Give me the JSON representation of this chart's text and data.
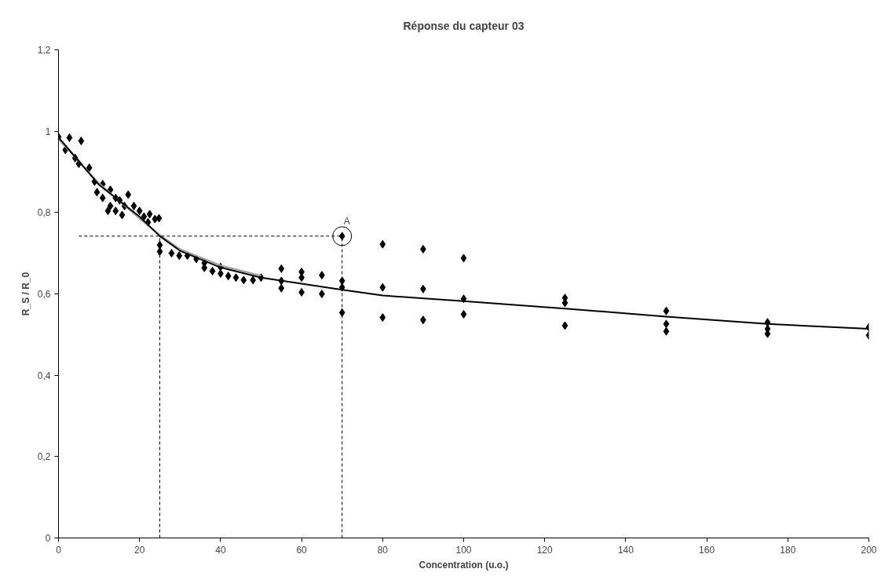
{
  "chart_data": {
    "type": "scatter",
    "title": "Réponse du capteur 03",
    "xlabel": "Concentration (u.o.)",
    "ylabel": "R_S / R_0",
    "xlim": [
      0,
      200
    ],
    "ylim": [
      0,
      1.2
    ],
    "xticks": [
      0,
      20,
      40,
      60,
      80,
      100,
      120,
      140,
      160,
      180,
      200
    ],
    "yticks": [
      0,
      {
        "value": 0.2,
        "label": "0,2"
      },
      {
        "value": 0.4,
        "label": "0,4"
      },
      {
        "value": 0.6,
        "label": "0,6"
      },
      {
        "value": 0.8,
        "label": "0,8"
      },
      1,
      {
        "value": 1.2,
        "label": "1,2"
      }
    ],
    "grid": false,
    "annotations": [
      {
        "text": "A",
        "x": 70,
        "y": 0.742
      }
    ],
    "series": [
      {
        "color": "#000000",
        "marker": "diamond",
        "x": [
          0,
          2.7,
          5.6,
          1.7,
          4.1,
          5,
          7.6,
          8.9,
          10.9,
          9.5,
          10.9,
          12.8,
          14.1,
          15.7,
          17.2,
          15.1,
          18.6,
          20,
          21.1,
          22.5,
          23.8,
          24.8,
          22.1,
          12.2,
          12.8,
          14.1,
          16.3,
          25,
          25,
          27.9,
          29.8,
          31.8,
          34,
          36,
          36,
          38,
          40,
          40,
          41.9,
          43.8,
          45.7,
          48,
          50,
          55,
          55,
          55,
          60,
          60,
          60,
          65,
          65,
          70,
          70,
          70,
          70,
          80,
          80,
          80,
          90,
          90,
          90,
          100,
          100,
          100,
          125,
          125,
          125,
          150,
          150,
          150,
          175,
          175,
          175,
          200,
          200
        ],
        "values": [
          0.986,
          0.984,
          0.976,
          0.954,
          0.934,
          0.92,
          0.91,
          0.876,
          0.87,
          0.85,
          0.836,
          0.816,
          0.804,
          0.794,
          0.844,
          0.83,
          0.816,
          0.804,
          0.79,
          0.796,
          0.784,
          0.786,
          0.776,
          0.804,
          0.856,
          0.836,
          0.816,
          0.72,
          0.704,
          0.7,
          0.694,
          0.694,
          0.686,
          0.676,
          0.664,
          0.656,
          0.666,
          0.65,
          0.644,
          0.64,
          0.634,
          0.634,
          0.64,
          0.662,
          0.632,
          0.614,
          0.654,
          0.64,
          0.604,
          0.646,
          0.6,
          0.742,
          0.632,
          0.616,
          0.554,
          0.722,
          0.616,
          0.542,
          0.71,
          0.612,
          0.536,
          0.688,
          0.588,
          0.55,
          0.59,
          0.578,
          0.522,
          0.558,
          0.526,
          0.508,
          0.53,
          0.514,
          0.502,
          0.518,
          0.498
        ]
      },
      {
        "type": "line",
        "color": "#a0a0a0",
        "line_style": "solid",
        "x": [
          0,
          10,
          20,
          25,
          30,
          40,
          50
        ],
        "values": [
          0.98,
          0.872,
          0.785,
          0.745,
          0.71,
          0.67,
          0.645
        ]
      },
      {
        "type": "line",
        "color": "#000000",
        "line_style": "solid",
        "x": [
          0,
          10,
          20,
          25,
          30,
          40,
          50,
          60,
          70,
          80,
          100,
          125,
          150,
          175,
          200
        ],
        "values": [
          0.985,
          0.868,
          0.79,
          0.742,
          0.706,
          0.665,
          0.64,
          0.625,
          0.61,
          0.596,
          0.582,
          0.564,
          0.544,
          0.526,
          0.514
        ]
      },
      {
        "type": "line",
        "color": "#000000",
        "line_style": "dashed",
        "x": [
          5,
          70
        ],
        "values": [
          0.742,
          0.742
        ]
      },
      {
        "type": "line",
        "color": "#000000",
        "line_style": "dashed",
        "x": [
          25,
          25
        ],
        "values": [
          0,
          0.742
        ]
      },
      {
        "type": "line",
        "color": "#000000",
        "line_style": "dashed",
        "x": [
          70,
          70
        ],
        "values": [
          0,
          0.742
        ]
      }
    ]
  }
}
